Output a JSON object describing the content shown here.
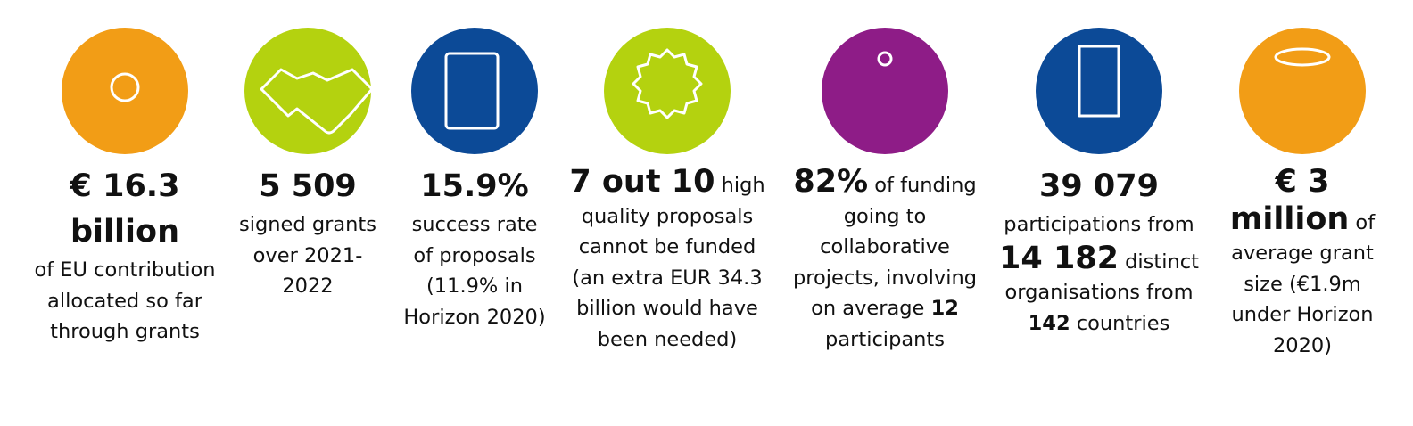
{
  "items": [
    {
      "color": "#f29d16",
      "parts": [
        {
          "text": "€ 16.3 billion",
          "style": "heading"
        },
        {
          "text": "of EU contribution allocated so far through grants"
        }
      ]
    },
    {
      "color": "#b4d20f",
      "parts": [
        {
          "text": "5 509",
          "style": "heading"
        },
        {
          "text": "signed grants over 2021-2022"
        }
      ]
    },
    {
      "color": "#0c4a97",
      "parts": [
        {
          "text": "15.9%",
          "style": "heading"
        },
        {
          "text": "success rate of proposals (11.9% in Horizon 2020)"
        }
      ]
    },
    {
      "color": "#b4d20f",
      "parts": [
        {
          "text": "7 out 10",
          "style": "large"
        },
        {
          "text": " high quality proposals cannot be funded (an extra EUR 34.3 billion would have been needed)"
        }
      ]
    },
    {
      "color": "#8e1c87",
      "parts": [
        {
          "text": "82%",
          "style": "large"
        },
        {
          "text": " of funding going to collaborative projects, involving on average "
        },
        {
          "text": "12",
          "style": "bold"
        },
        {
          "text": " participants"
        }
      ]
    },
    {
      "color": "#0c4a97",
      "parts": [
        {
          "text": "39 079",
          "style": "heading"
        },
        {
          "text": "participations from "
        },
        {
          "text": "14 182",
          "style": "large"
        },
        {
          "text": " distinct organisations from "
        },
        {
          "text": "142",
          "style": "bold"
        },
        {
          "text": " countries"
        }
      ]
    },
    {
      "color": "#f29d16",
      "parts": [
        {
          "text": "€ 3 million",
          "style": "large"
        },
        {
          "text": " of average grant size (€1.9m under Horizon 2020)"
        }
      ]
    }
  ]
}
